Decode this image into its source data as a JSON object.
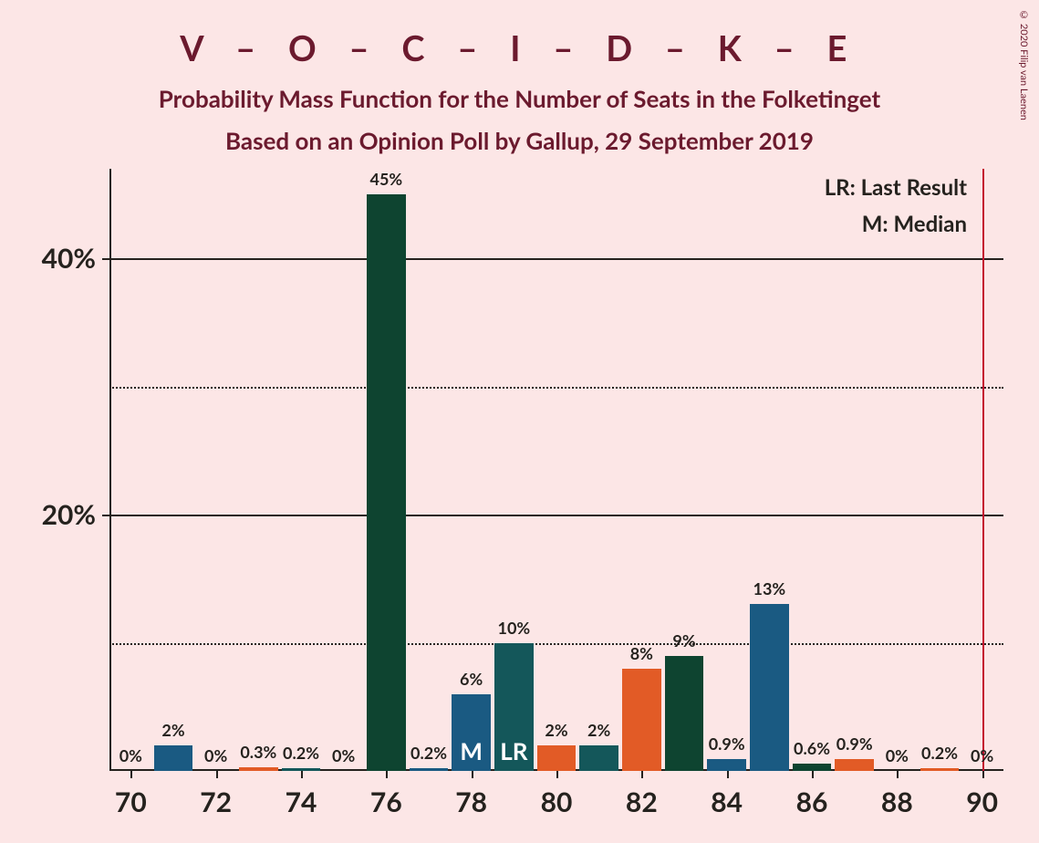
{
  "title": "V – O – C – I – D – K – E",
  "subtitle1": "Probability Mass Function for the Number of Seats in the Folketinget",
  "subtitle2": "Based on an Opinion Poll by Gallup, 29 September 2019",
  "copyright": "© 2020 Filip van Laenen",
  "legend": {
    "lr": "LR: Last Result",
    "m": "M: Median"
  },
  "chart": {
    "type": "bar",
    "background_color": "#fce6e6",
    "text_color": "#25221e",
    "title_color": "#6b1a2e",
    "x_range": [
      69.5,
      90.5
    ],
    "y_range": [
      0,
      47
    ],
    "y_ticks_major": [
      20,
      40
    ],
    "y_ticks_minor": [
      10,
      30
    ],
    "y_tick_labels": {
      "20": "20%",
      "40": "40%"
    },
    "x_ticks": [
      70,
      72,
      74,
      76,
      78,
      80,
      82,
      84,
      86,
      88,
      90
    ],
    "grid_solid_color": "#25221e",
    "grid_dotted_color": "#25221e",
    "vertical_line": {
      "x": 90,
      "color": "#c41230"
    },
    "bar_width": 0.92,
    "bars": [
      {
        "x": 70,
        "value": 0,
        "label": "0%",
        "color": "#1a5a82"
      },
      {
        "x": 71,
        "value": 2,
        "label": "2%",
        "color": "#1a5a82"
      },
      {
        "x": 72,
        "value": 0,
        "label": "0%",
        "color": "#e25b26"
      },
      {
        "x": 73,
        "value": 0.3,
        "label": "0.3%",
        "color": "#e25b26"
      },
      {
        "x": 74,
        "value": 0.2,
        "label": "0.2%",
        "color": "#14575a"
      },
      {
        "x": 75,
        "value": 0,
        "label": "0%",
        "color": "#0e4430"
      },
      {
        "x": 76,
        "value": 45,
        "label": "45%",
        "color": "#0e4430"
      },
      {
        "x": 77,
        "value": 0.2,
        "label": "0.2%",
        "color": "#1a5a82"
      },
      {
        "x": 78,
        "value": 6,
        "label": "6%",
        "color": "#1a5a82",
        "text": "M"
      },
      {
        "x": 79,
        "value": 10,
        "label": "10%",
        "color": "#14575a",
        "text": "LR"
      },
      {
        "x": 80,
        "value": 2,
        "label": "2%",
        "color": "#e25b26"
      },
      {
        "x": 81,
        "value": 2,
        "label": "2%",
        "color": "#14575a"
      },
      {
        "x": 82,
        "value": 8,
        "label": "8%",
        "color": "#e25b26"
      },
      {
        "x": 83,
        "value": 9,
        "label": "9%",
        "color": "#0e4430"
      },
      {
        "x": 84,
        "value": 0.9,
        "label": "0.9%",
        "color": "#1a5a82"
      },
      {
        "x": 85,
        "value": 13,
        "label": "13%",
        "color": "#1a5a82"
      },
      {
        "x": 86,
        "value": 0.6,
        "label": "0.6%",
        "color": "#0e4430"
      },
      {
        "x": 87,
        "value": 0.9,
        "label": "0.9%",
        "color": "#e25b26"
      },
      {
        "x": 88,
        "value": 0,
        "label": "0%",
        "color": "#14575a"
      },
      {
        "x": 89,
        "value": 0.2,
        "label": "0.2%",
        "color": "#e25b26"
      },
      {
        "x": 90,
        "value": 0,
        "label": "0%",
        "color": "#0e4430"
      }
    ]
  }
}
